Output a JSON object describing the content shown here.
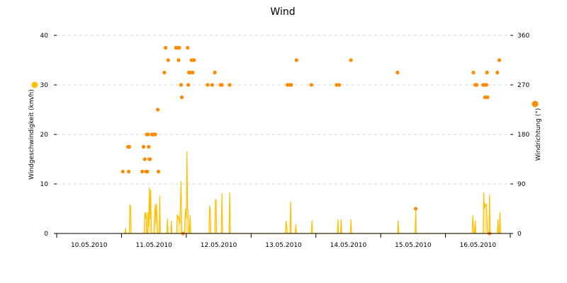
{
  "chart_data": {
    "type": "line",
    "title": "Wind",
    "ylabel_left": "Windgeschwindigkeit (km/h)",
    "ylabel_right": "Windrichtung (°)",
    "ylim_left": [
      0,
      40
    ],
    "ylim_right": [
      0,
      360
    ],
    "yticks_left": [
      "0",
      "10",
      "20",
      "30",
      "40"
    ],
    "yticks_right": [
      "0",
      "90",
      "180",
      "270",
      "360"
    ],
    "xlim": [
      0,
      7
    ],
    "xtick_labels": [
      "10.05.2010",
      "11.05.2010",
      "12.05.2010",
      "13.05.2010",
      "14.05.2010",
      "15.05.2010",
      "16.05.2010"
    ],
    "grid_horizontal": true,
    "colors": {
      "speed": "#ffc000",
      "direction": "#ff8c00",
      "grid": "#d3d3d3",
      "axis": "#000000"
    },
    "series": [
      {
        "type": "area",
        "axis": "left",
        "color": "#ffc000",
        "points": [
          [
            1.05,
            0
          ],
          [
            1.06,
            1.0
          ],
          [
            1.07,
            0
          ],
          [
            1.12,
            0
          ],
          [
            1.13,
            5.8
          ],
          [
            1.14,
            5.5
          ],
          [
            1.15,
            0
          ],
          [
            1.35,
            0
          ],
          [
            1.36,
            4.2
          ],
          [
            1.37,
            3.0
          ],
          [
            1.38,
            4.2
          ],
          [
            1.39,
            0
          ],
          [
            1.4,
            0
          ],
          [
            1.41,
            4.2
          ],
          [
            1.42,
            1.5
          ],
          [
            1.43,
            9.2
          ],
          [
            1.44,
            3.0
          ],
          [
            1.45,
            8.8
          ],
          [
            1.46,
            1.0
          ],
          [
            1.47,
            0
          ],
          [
            1.5,
            0
          ],
          [
            1.51,
            4.0
          ],
          [
            1.52,
            5.8
          ],
          [
            1.53,
            2.0
          ],
          [
            1.54,
            6.0
          ],
          [
            1.55,
            3.0
          ],
          [
            1.56,
            0
          ],
          [
            1.58,
            0
          ],
          [
            1.59,
            7.5
          ],
          [
            1.6,
            0
          ],
          [
            1.7,
            0
          ],
          [
            1.71,
            3.0
          ],
          [
            1.72,
            0
          ],
          [
            1.76,
            0
          ],
          [
            1.77,
            2.5
          ],
          [
            1.78,
            0
          ],
          [
            1.85,
            0
          ],
          [
            1.86,
            3.8
          ],
          [
            1.87,
            3.0
          ],
          [
            1.88,
            3.5
          ],
          [
            1.89,
            2.8
          ],
          [
            1.9,
            2.0
          ],
          [
            1.91,
            6.5
          ],
          [
            1.92,
            10.5
          ],
          [
            1.93,
            0
          ],
          [
            1.97,
            0
          ],
          [
            1.98,
            3.0
          ],
          [
            1.99,
            5.0
          ],
          [
            2.0,
            3.0
          ],
          [
            2.01,
            16.5
          ],
          [
            2.02,
            5.0
          ],
          [
            2.03,
            4.5
          ],
          [
            2.04,
            0
          ],
          [
            2.05,
            0
          ],
          [
            2.06,
            3.6
          ],
          [
            2.07,
            0
          ],
          [
            2.35,
            0
          ],
          [
            2.36,
            5.6
          ],
          [
            2.37,
            4.5
          ],
          [
            2.38,
            0
          ],
          [
            2.44,
            0
          ],
          [
            2.45,
            6.8
          ],
          [
            2.46,
            6.8
          ],
          [
            2.47,
            0
          ],
          [
            2.54,
            0
          ],
          [
            2.55,
            8.0
          ],
          [
            2.56,
            0
          ],
          [
            2.66,
            0
          ],
          [
            2.67,
            8.2
          ],
          [
            2.68,
            0
          ],
          [
            3.53,
            0
          ],
          [
            3.54,
            2.5
          ],
          [
            3.55,
            1.5
          ],
          [
            3.56,
            0
          ],
          [
            3.6,
            0
          ],
          [
            3.61,
            6.4
          ],
          [
            3.62,
            0
          ],
          [
            3.68,
            0
          ],
          [
            3.69,
            1.8
          ],
          [
            3.7,
            0
          ],
          [
            3.93,
            0
          ],
          [
            3.94,
            2.6
          ],
          [
            3.95,
            0
          ],
          [
            4.33,
            0
          ],
          [
            4.34,
            2.8
          ],
          [
            4.35,
            0
          ],
          [
            4.38,
            0
          ],
          [
            4.39,
            2.8
          ],
          [
            4.4,
            0
          ],
          [
            4.53,
            0
          ],
          [
            4.54,
            2.8
          ],
          [
            4.55,
            0
          ],
          [
            5.26,
            0
          ],
          [
            5.27,
            2.6
          ],
          [
            5.28,
            0
          ],
          [
            5.53,
            0
          ],
          [
            5.54,
            4.8
          ],
          [
            5.55,
            0
          ],
          [
            6.41,
            0
          ],
          [
            6.42,
            3.6
          ],
          [
            6.43,
            2.0
          ],
          [
            6.44,
            0
          ],
          [
            6.45,
            0
          ],
          [
            6.46,
            2.6
          ],
          [
            6.47,
            0
          ],
          [
            6.58,
            0
          ],
          [
            6.59,
            8.2
          ],
          [
            6.6,
            5.0
          ],
          [
            6.61,
            6.0
          ],
          [
            6.62,
            5.5
          ],
          [
            6.63,
            6.0
          ],
          [
            6.64,
            3.0
          ],
          [
            6.65,
            0
          ],
          [
            6.67,
            0
          ],
          [
            6.68,
            7.8
          ],
          [
            6.69,
            0
          ],
          [
            6.8,
            0
          ],
          [
            6.81,
            2.8
          ],
          [
            6.82,
            0
          ],
          [
            6.83,
            0
          ],
          [
            6.84,
            4.3
          ],
          [
            6.85,
            0
          ]
        ]
      },
      {
        "type": "scatter",
        "axis": "right",
        "color": "#ff8c00",
        "points": [
          [
            1.02,
            112.5
          ],
          [
            1.1,
            157.5
          ],
          [
            1.12,
            157.5
          ],
          [
            1.11,
            112.5
          ],
          [
            1.32,
            112.5
          ],
          [
            1.34,
            157.5
          ],
          [
            1.36,
            135
          ],
          [
            1.38,
            112.5
          ],
          [
            1.39,
            180
          ],
          [
            1.4,
            112.5
          ],
          [
            1.41,
            180
          ],
          [
            1.42,
            157.5
          ],
          [
            1.43,
            135
          ],
          [
            1.44,
            135
          ],
          [
            1.47,
            180
          ],
          [
            1.49,
            180
          ],
          [
            1.5,
            180
          ],
          [
            1.52,
            180
          ],
          [
            1.56,
            225
          ],
          [
            1.57,
            112.5
          ],
          [
            1.66,
            292.5
          ],
          [
            1.68,
            337.5
          ],
          [
            1.72,
            315
          ],
          [
            1.84,
            337.5
          ],
          [
            1.87,
            337.5
          ],
          [
            1.89,
            337.5
          ],
          [
            1.88,
            315
          ],
          [
            1.92,
            270
          ],
          [
            1.93,
            247.5
          ],
          [
            2.02,
            337.5
          ],
          [
            2.03,
            270
          ],
          [
            2.04,
            292.5
          ],
          [
            2.06,
            292.5
          ],
          [
            2.08,
            315
          ],
          [
            2.1,
            292.5
          ],
          [
            2.12,
            315
          ],
          [
            2.33,
            270
          ],
          [
            2.4,
            270
          ],
          [
            2.44,
            292.5
          ],
          [
            2.53,
            270
          ],
          [
            2.55,
            270
          ],
          [
            2.67,
            270
          ],
          [
            3.56,
            270
          ],
          [
            3.6,
            270
          ],
          [
            3.62,
            270
          ],
          [
            3.7,
            315
          ],
          [
            3.93,
            270
          ],
          [
            4.32,
            270
          ],
          [
            4.36,
            270
          ],
          [
            4.54,
            315
          ],
          [
            5.26,
            292.5
          ],
          [
            5.54,
            45
          ],
          [
            6.43,
            292.5
          ],
          [
            6.46,
            270
          ],
          [
            6.48,
            270
          ],
          [
            6.58,
            270
          ],
          [
            6.61,
            247.5
          ],
          [
            6.62,
            270
          ],
          [
            6.63,
            270
          ],
          [
            6.64,
            292.5
          ],
          [
            6.65,
            247.5
          ],
          [
            6.8,
            292.5
          ],
          [
            6.83,
            315
          ]
        ]
      }
    ]
  }
}
